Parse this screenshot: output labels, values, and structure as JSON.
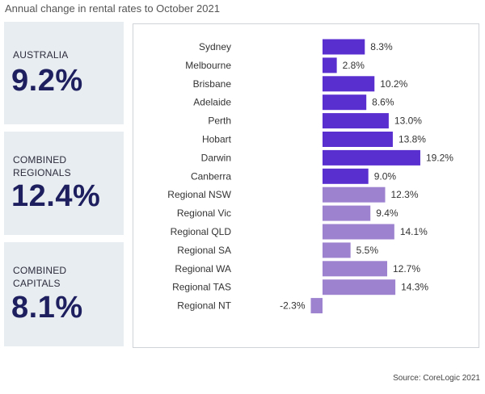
{
  "title": "Annual change in rental rates to October 2021",
  "stats": [
    {
      "label_lines": [
        "AUSTRALIA"
      ],
      "value": "9.2%"
    },
    {
      "label_lines": [
        "COMBINED",
        "REGIONALS"
      ],
      "value": "12.4%"
    },
    {
      "label_lines": [
        "COMBINED",
        "CAPITALS"
      ],
      "value": "8.1%"
    }
  ],
  "source": "Source:  CoreLogic 2021",
  "colors": {
    "capital": "#5a2fd0",
    "regional": "#9c82cf"
  },
  "chart_data": {
    "type": "bar",
    "orientation": "horizontal",
    "title": "Annual change in rental rates to October 2021",
    "xlabel": "",
    "ylabel": "",
    "xlim": [
      -2.3,
      19.2
    ],
    "categories": [
      "Sydney",
      "Melbourne",
      "Brisbane",
      "Adelaide",
      "Perth",
      "Hobart",
      "Darwin",
      "Canberra",
      "Regional NSW",
      "Regional Vic",
      "Regional QLD",
      "Regional SA",
      "Regional WA",
      "Regional TAS",
      "Regional NT"
    ],
    "values": [
      8.3,
      2.8,
      10.2,
      8.6,
      13.0,
      13.8,
      19.2,
      9.0,
      12.3,
      9.4,
      14.1,
      5.5,
      12.7,
      14.3,
      -2.3
    ],
    "value_labels": [
      "8.3%",
      "2.8%",
      "10.2%",
      "8.6%",
      "13.0%",
      "13.8%",
      "19.2%",
      "9.0%",
      "12.3%",
      "9.4%",
      "14.1%",
      "5.5%",
      "12.7%",
      "14.3%",
      "-2.3%"
    ],
    "group": [
      "capital",
      "capital",
      "capital",
      "capital",
      "capital",
      "capital",
      "capital",
      "capital",
      "regional",
      "regional",
      "regional",
      "regional",
      "regional",
      "regional",
      "regional"
    ]
  }
}
